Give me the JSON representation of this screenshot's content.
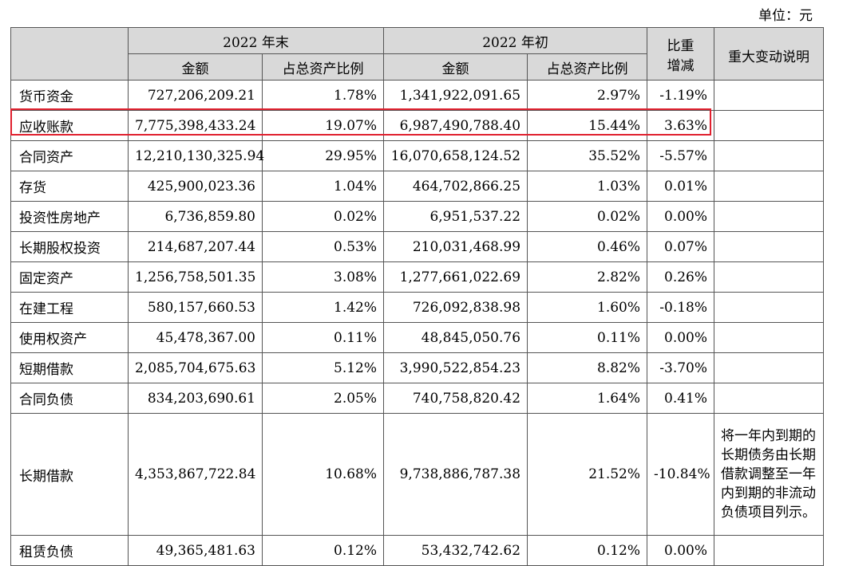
{
  "unit_label": "单位：元",
  "headers": {
    "end_year": "2022 年末",
    "begin_year": "2022 年初",
    "amount": "金额",
    "ratio": "占总资产比例",
    "change_line1": "比重",
    "change_line2": "增减",
    "note": "重大变动说明"
  },
  "rows": [
    {
      "name": "货币资金",
      "end_amount": "727,206,209.21",
      "end_ratio": "1.78%",
      "begin_amount": "1,341,922,091.65",
      "begin_ratio": "2.97%",
      "change": "-1.19%",
      "note": ""
    },
    {
      "name": "应收账款",
      "end_amount": "7,775,398,433.24",
      "end_ratio": "19.07%",
      "begin_amount": "6,987,490,788.40",
      "begin_ratio": "15.44%",
      "change": "3.63%",
      "note": ""
    },
    {
      "name": "合同资产",
      "end_amount": "12,210,130,325.94",
      "end_ratio": "29.95%",
      "begin_amount": "16,070,658,124.52",
      "begin_ratio": "35.52%",
      "change": "-5.57%",
      "note": ""
    },
    {
      "name": "存货",
      "end_amount": "425,900,023.36",
      "end_ratio": "1.04%",
      "begin_amount": "464,702,866.25",
      "begin_ratio": "1.03%",
      "change": "0.01%",
      "note": ""
    },
    {
      "name": "投资性房地产",
      "end_amount": "6,736,859.80",
      "end_ratio": "0.02%",
      "begin_amount": "6,951,537.22",
      "begin_ratio": "0.02%",
      "change": "0.00%",
      "note": ""
    },
    {
      "name": "长期股权投资",
      "end_amount": "214,687,207.44",
      "end_ratio": "0.53%",
      "begin_amount": "210,031,468.99",
      "begin_ratio": "0.46%",
      "change": "0.07%",
      "note": ""
    },
    {
      "name": "固定资产",
      "end_amount": "1,256,758,501.35",
      "end_ratio": "3.08%",
      "begin_amount": "1,277,661,022.69",
      "begin_ratio": "2.82%",
      "change": "0.26%",
      "note": ""
    },
    {
      "name": "在建工程",
      "end_amount": "580,157,660.53",
      "end_ratio": "1.42%",
      "begin_amount": "726,092,838.98",
      "begin_ratio": "1.60%",
      "change": "-0.18%",
      "note": ""
    },
    {
      "name": "使用权资产",
      "end_amount": "45,478,367.00",
      "end_ratio": "0.11%",
      "begin_amount": "48,845,050.76",
      "begin_ratio": "0.11%",
      "change": "0.00%",
      "note": ""
    },
    {
      "name": "短期借款",
      "end_amount": "2,085,704,675.63",
      "end_ratio": "5.12%",
      "begin_amount": "3,990,522,854.23",
      "begin_ratio": "8.82%",
      "change": "-3.70%",
      "note": ""
    },
    {
      "name": "合同负债",
      "end_amount": "834,203,690.61",
      "end_ratio": "2.05%",
      "begin_amount": "740,758,820.42",
      "begin_ratio": "1.64%",
      "change": "0.41%",
      "note": ""
    },
    {
      "name": "长期借款",
      "end_amount": "4,353,867,722.84",
      "end_ratio": "10.68%",
      "begin_amount": "9,738,886,787.38",
      "begin_ratio": "21.52%",
      "change": "-10.84%",
      "note": "将一年内到期的长期债务由长期借款调整至一年内到期的非流动负债项目列示。"
    },
    {
      "name": "租赁负债",
      "end_amount": "49,365,481.63",
      "end_ratio": "0.12%",
      "begin_amount": "53,432,742.62",
      "begin_ratio": "0.12%",
      "change": "0.00%",
      "note": ""
    }
  ]
}
